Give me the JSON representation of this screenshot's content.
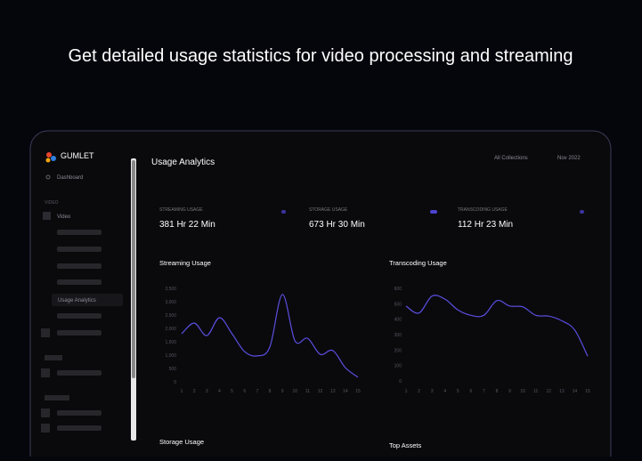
{
  "headline": "Get detailed usage statistics for video processing and streaming",
  "sidebar": {
    "brand": "GUMLET",
    "dashboard": "Dashboard",
    "section": "VIDEO",
    "video": "Video",
    "active": "Usage Analytics"
  },
  "header": {
    "title": "Usage Analytics",
    "collections": "All Collections",
    "period": "Nov 2022"
  },
  "stats": [
    {
      "label": "STREAMING USAGE",
      "value": "381 Hr 22 Min"
    },
    {
      "label": "STORAGE USAGE",
      "value": "673 Hr 30 Min"
    },
    {
      "label": "TRANSCODING USAGE",
      "value": "112 Hr 23 Min"
    }
  ],
  "charts": [
    {
      "type": "line",
      "title": "Streaming Usage",
      "color": "#5b4ee0",
      "categories": [
        "1",
        "2",
        "3",
        "4",
        "5",
        "6",
        "7",
        "8",
        "9",
        "10",
        "11",
        "12",
        "13",
        "14",
        "15"
      ],
      "values": [
        1800,
        2200,
        1730,
        2400,
        1800,
        1130,
        970,
        1300,
        3270,
        1530,
        1630,
        1030,
        1170,
        530,
        170
      ],
      "ylim": [
        0,
        3500
      ],
      "yticks": [
        0,
        500,
        {
          "value": 1000,
          "label": "1,000"
        },
        {
          "value": 1500,
          "label": "1,500"
        },
        {
          "value": 2000,
          "label": "2,000"
        },
        {
          "value": 2500,
          "label": "2,500"
        },
        {
          "value": 3000,
          "label": "3,000"
        },
        {
          "value": 3500,
          "label": "3,500"
        }
      ]
    },
    {
      "type": "line",
      "title": "Transcoding Usage",
      "color": "#5b4ee0",
      "categories": [
        "1",
        "2",
        "3",
        "4",
        "5",
        "6",
        "7",
        "8",
        "9",
        "10",
        "11",
        "12",
        "13",
        "14",
        "15"
      ],
      "values": [
        485,
        440,
        550,
        530,
        460,
        425,
        425,
        520,
        485,
        480,
        425,
        420,
        390,
        330,
        160
      ],
      "ylim": [
        0,
        600
      ],
      "yticks": [
        0,
        100,
        200,
        300,
        400,
        500,
        600
      ]
    }
  ],
  "bottom": {
    "storage": "Storage Usage",
    "assets": "Top Assets"
  }
}
